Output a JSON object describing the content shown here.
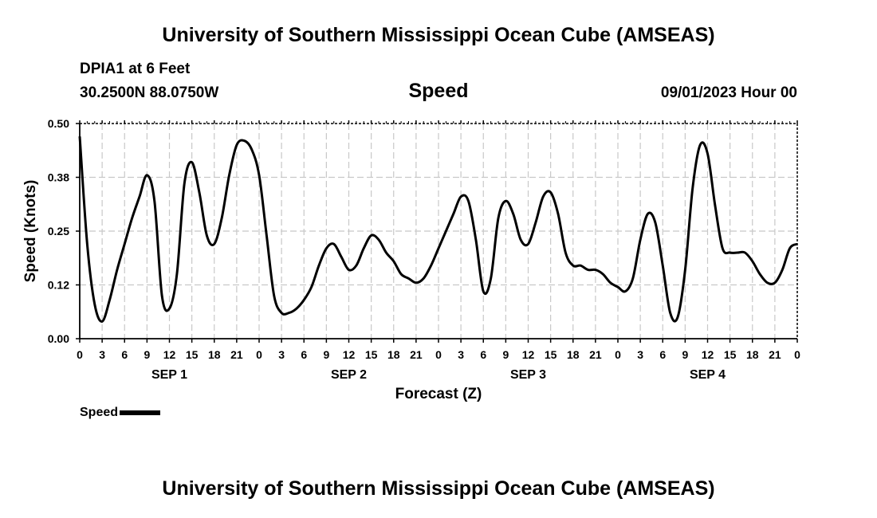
{
  "page": {
    "title": "University of Southern Mississippi Ocean Cube (AMSEAS)",
    "footer_title": "University of Southern Mississippi Ocean Cube (AMSEAS)",
    "station": "DPIA1 at 6 Feet",
    "coordinates": "30.2500N  88.0750W",
    "chart_heading": "Speed",
    "datetime": "09/01/2023 Hour 00",
    "legend_label": "Speed"
  },
  "colors": {
    "line": "#000000",
    "grid": "#c8c8c8",
    "axis": "#000000"
  },
  "chart_data": {
    "type": "line",
    "title": "Speed",
    "xlabel": "Forecast (Z)",
    "ylabel": "Speed (Knots)",
    "xlim": [
      0,
      96
    ],
    "ylim": [
      0,
      0.5
    ],
    "grid": true,
    "legend_position": "bottom-left",
    "yticks": [
      {
        "value": 0,
        "label": "0.00"
      },
      {
        "value": 0.125,
        "label": "0.12"
      },
      {
        "value": 0.25,
        "label": "0.25"
      },
      {
        "value": 0.375,
        "label": "0.38"
      },
      {
        "value": 0.5,
        "label": "0.50"
      }
    ],
    "xticks": [
      {
        "value": 0,
        "label": "0"
      },
      {
        "value": 3,
        "label": "3"
      },
      {
        "value": 6,
        "label": "6"
      },
      {
        "value": 9,
        "label": "9"
      },
      {
        "value": 12,
        "label": "12"
      },
      {
        "value": 15,
        "label": "15"
      },
      {
        "value": 18,
        "label": "18"
      },
      {
        "value": 21,
        "label": "21"
      },
      {
        "value": 24,
        "label": "0"
      },
      {
        "value": 27,
        "label": "3"
      },
      {
        "value": 30,
        "label": "6"
      },
      {
        "value": 33,
        "label": "9"
      },
      {
        "value": 36,
        "label": "12"
      },
      {
        "value": 39,
        "label": "15"
      },
      {
        "value": 42,
        "label": "18"
      },
      {
        "value": 45,
        "label": "21"
      },
      {
        "value": 48,
        "label": "0"
      },
      {
        "value": 51,
        "label": "3"
      },
      {
        "value": 54,
        "label": "6"
      },
      {
        "value": 57,
        "label": "9"
      },
      {
        "value": 60,
        "label": "12"
      },
      {
        "value": 63,
        "label": "15"
      },
      {
        "value": 66,
        "label": "18"
      },
      {
        "value": 69,
        "label": "21"
      },
      {
        "value": 72,
        "label": "0"
      },
      {
        "value": 75,
        "label": "3"
      },
      {
        "value": 78,
        "label": "6"
      },
      {
        "value": 81,
        "label": "9"
      },
      {
        "value": 84,
        "label": "12"
      },
      {
        "value": 87,
        "label": "15"
      },
      {
        "value": 90,
        "label": "18"
      },
      {
        "value": 93,
        "label": "21"
      },
      {
        "value": 96,
        "label": "0"
      }
    ],
    "day_labels": [
      {
        "value": 12,
        "label": "SEP 1"
      },
      {
        "value": 36,
        "label": "SEP 2"
      },
      {
        "value": 60,
        "label": "SEP 3"
      },
      {
        "value": 84,
        "label": "SEP 4"
      }
    ],
    "series": [
      {
        "name": "Speed",
        "x": [
          0,
          1,
          2,
          3,
          4,
          5,
          6,
          7,
          8,
          9,
          10,
          11,
          12,
          13,
          14,
          15,
          16,
          17,
          18,
          19,
          20,
          21,
          22,
          23,
          24,
          25,
          26,
          27,
          28,
          29,
          30,
          31,
          32,
          33,
          34,
          35,
          36,
          37,
          38,
          39,
          40,
          41,
          42,
          43,
          44,
          45,
          46,
          47,
          48,
          49,
          50,
          51,
          52,
          53,
          54,
          55,
          56,
          57,
          58,
          59,
          60,
          61,
          62,
          63,
          64,
          65,
          66,
          67,
          68,
          69,
          70,
          71,
          72,
          73,
          74,
          75,
          76,
          77,
          78,
          79,
          80,
          81,
          82,
          83,
          84,
          85,
          86,
          87,
          88,
          89,
          90,
          91,
          92,
          93,
          94,
          95,
          96
        ],
        "values": [
          0.47,
          0.22,
          0.08,
          0.04,
          0.09,
          0.16,
          0.22,
          0.28,
          0.33,
          0.38,
          0.32,
          0.1,
          0.07,
          0.15,
          0.36,
          0.41,
          0.34,
          0.24,
          0.22,
          0.28,
          0.38,
          0.45,
          0.46,
          0.44,
          0.38,
          0.24,
          0.1,
          0.06,
          0.06,
          0.07,
          0.09,
          0.12,
          0.17,
          0.21,
          0.22,
          0.19,
          0.16,
          0.17,
          0.21,
          0.24,
          0.23,
          0.2,
          0.18,
          0.15,
          0.14,
          0.13,
          0.14,
          0.17,
          0.21,
          0.25,
          0.29,
          0.33,
          0.32,
          0.23,
          0.11,
          0.14,
          0.28,
          0.32,
          0.29,
          0.23,
          0.22,
          0.27,
          0.33,
          0.34,
          0.29,
          0.2,
          0.17,
          0.17,
          0.16,
          0.16,
          0.15,
          0.13,
          0.12,
          0.11,
          0.14,
          0.23,
          0.29,
          0.27,
          0.17,
          0.06,
          0.05,
          0.16,
          0.35,
          0.45,
          0.43,
          0.31,
          0.21,
          0.2,
          0.2,
          0.2,
          0.18,
          0.15,
          0.13,
          0.13,
          0.16,
          0.21,
          0.22
        ]
      }
    ]
  }
}
